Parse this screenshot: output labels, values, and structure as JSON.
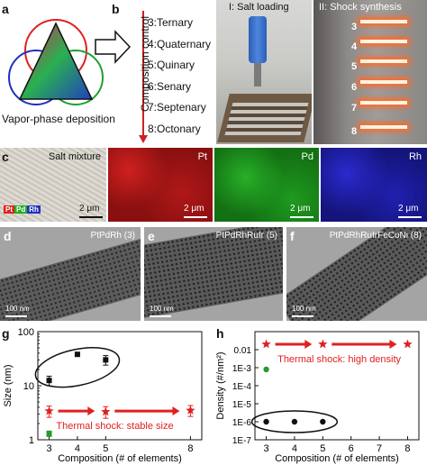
{
  "panel_labels": {
    "a": "a",
    "b": "b",
    "c": "c",
    "d": "d",
    "e": "e",
    "f": "f",
    "g": "g",
    "h": "h"
  },
  "panel_a": {
    "caption": "Vapor-phase deposition"
  },
  "panel_b": {
    "axis_label": "Composition control",
    "items": [
      "3:Ternary",
      "4:Quaternary",
      "5:Quinary",
      "6:Senary",
      "7:Septenary",
      "8:Octonary"
    ],
    "photo1_title": "I: Salt loading",
    "photo2_title": "II: Shock synthesis",
    "sample_numbers": [
      "3",
      "4",
      "5",
      "6",
      "7",
      "8"
    ]
  },
  "panel_c": {
    "maps": [
      {
        "label": "Salt mixture",
        "color": "#d8d4cc",
        "scale": "2 μm"
      },
      {
        "label": "Pt",
        "color": "#c01818",
        "scale": "2 μm"
      },
      {
        "label": "Pd",
        "color": "#1a9a1a",
        "scale": "2 μm"
      },
      {
        "label": "Rh",
        "color": "#2020b8",
        "scale": "2 μm"
      }
    ],
    "legend": [
      "Pt",
      "Pd",
      "Rh"
    ]
  },
  "panel_tem": [
    {
      "title": "PtPdRh (3)",
      "scale": "100 nm"
    },
    {
      "title": "PtPdRhRuIr (5)",
      "scale": "100 nm"
    },
    {
      "title": "PtPdRhRuIrFeCoNi (8)",
      "scale": "100 nm"
    }
  ],
  "chart_data": [
    {
      "type": "scatter",
      "panel": "g",
      "xlabel": "Composition (# of elements)",
      "ylabel": "Size (nm)",
      "xticks": [
        3,
        4,
        5,
        8
      ],
      "ylim": [
        1,
        100
      ],
      "yscale": "log",
      "yticks": [
        "1",
        "10",
        "100"
      ],
      "annotation": "Thermal shock: stable size",
      "series": [
        {
          "color": "#111111",
          "points": [
            {
              "x": 3,
              "y": 12.5,
              "err": 2.5
            },
            {
              "x": 4,
              "y": 38,
              "err": 3
            },
            {
              "x": 5,
              "y": 30,
              "err": 6
            }
          ]
        },
        {
          "color": "#e02020",
          "points": [
            {
              "x": 3,
              "y": 3.4,
              "err": 0.8
            },
            {
              "x": 5,
              "y": 3.3,
              "err": 0.8
            },
            {
              "x": 8,
              "y": 3.5,
              "err": 0.8
            }
          ]
        },
        {
          "color": "#2a9a2a",
          "points": [
            {
              "x": 3,
              "y": 1.3,
              "err": 0.15
            }
          ]
        }
      ]
    },
    {
      "type": "scatter",
      "panel": "h",
      "xlabel": "Composition (# of elements)",
      "ylabel": "Density (#/nm²)",
      "xticks": [
        3,
        4,
        5,
        6,
        7,
        8
      ],
      "yscale": "log",
      "ylim": [
        1e-07,
        0.1
      ],
      "yticks": [
        "1E-7",
        "1E-6",
        "1E-5",
        "1E-4",
        "1E-3",
        "0.01"
      ],
      "annotation": "Thermal shock: high density",
      "series": [
        {
          "color": "#e02020",
          "points": [
            {
              "x": 3,
              "y": 0.02
            },
            {
              "x": 5,
              "y": 0.02
            },
            {
              "x": 8,
              "y": 0.02
            }
          ]
        },
        {
          "color": "#2a9a2a",
          "points": [
            {
              "x": 3,
              "y": 0.0008
            }
          ]
        },
        {
          "color": "#111111",
          "points": [
            {
              "x": 3,
              "y": 1e-06
            },
            {
              "x": 4,
              "y": 1e-06
            },
            {
              "x": 5,
              "y": 1e-06
            }
          ]
        }
      ]
    }
  ]
}
